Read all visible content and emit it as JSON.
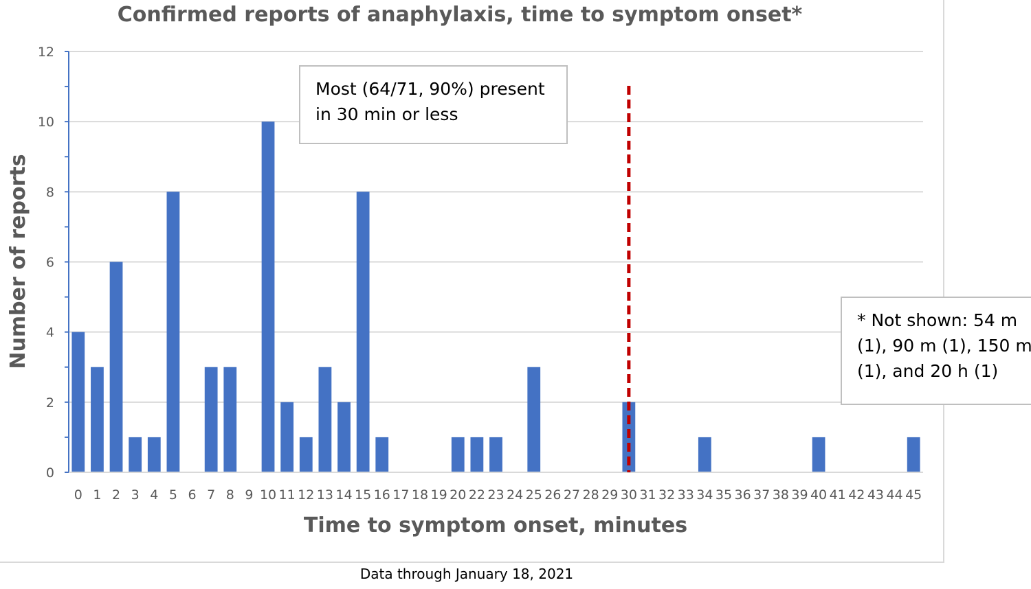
{
  "chart_data": {
    "type": "bar",
    "title": "Confirmed reports of anaphylaxis, time to symptom onset*",
    "xlabel": "Time to symptom onset, minutes",
    "ylabel": "Number of reports",
    "ylim": [
      0,
      12
    ],
    "yticks": [
      0,
      2,
      4,
      6,
      8,
      10,
      12
    ],
    "grid": true,
    "legend": "none",
    "bar_color": "#4472c4",
    "categories": [
      "0",
      "1",
      "2",
      "3",
      "4",
      "5",
      "6",
      "7",
      "8",
      "9",
      "10",
      "11",
      "12",
      "13",
      "14",
      "15",
      "16",
      "17",
      "18",
      "19",
      "20",
      "22",
      "23",
      "24",
      "25",
      "26",
      "27",
      "28",
      "29",
      "30",
      "31",
      "32",
      "33",
      "34",
      "35",
      "36",
      "37",
      "38",
      "39",
      "40",
      "41",
      "42",
      "43",
      "44",
      "45"
    ],
    "values": [
      4,
      3,
      6,
      1,
      1,
      8,
      0,
      3,
      3,
      0,
      10,
      2,
      1,
      3,
      2,
      8,
      1,
      0,
      0,
      0,
      1,
      1,
      1,
      0,
      3,
      0,
      0,
      0,
      0,
      2,
      0,
      0,
      0,
      1,
      0,
      0,
      0,
      0,
      0,
      1,
      0,
      0,
      0,
      0,
      1
    ],
    "reference_line": {
      "x": "30",
      "style": "dashed",
      "color": "#c00000"
    }
  },
  "annotations": {
    "main": [
      "Most (64/71, 90%) present",
      "in 30 min or less"
    ],
    "note": [
      "* Not shown: 54 m",
      "(1), 90 m (1), 150 m",
      "(1), and 20 h (1)"
    ]
  },
  "footnote": "Data through January 18, 2021"
}
